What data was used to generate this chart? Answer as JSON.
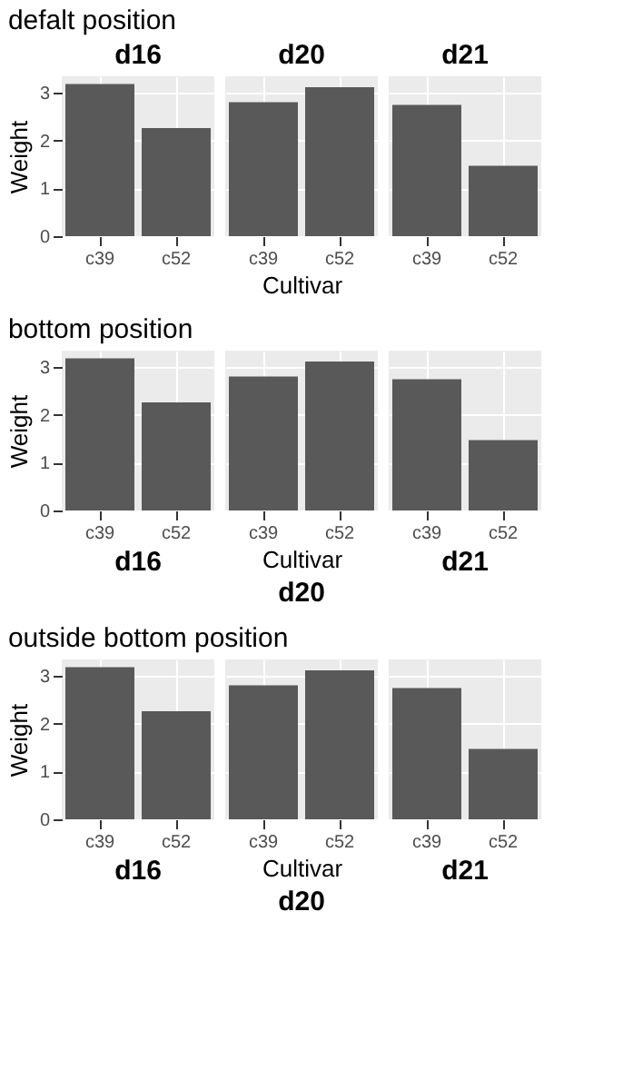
{
  "chart_data": [
    {
      "type": "bar",
      "title": "d16",
      "annotations": [
        "defalt position"
      ],
      "ylabel": "Weight",
      "categories": [
        "c39",
        "c52"
      ],
      "values": [
        3.18,
        2.26
      ],
      "color": "#595959",
      "ylim": [
        0,
        3.34
      ],
      "yticks": [
        0,
        1,
        2,
        3
      ],
      "grid": true
    },
    {
      "type": "bar",
      "title": "d20",
      "xlabel": "Cultivar",
      "categories": [
        "c39",
        "c52"
      ],
      "values": [
        2.8,
        3.11
      ],
      "color": "#595959",
      "ylim": [
        0,
        3.34
      ],
      "yticks": [
        0,
        1,
        2,
        3
      ],
      "grid": true,
      "tick_labels": "x"
    },
    {
      "type": "bar",
      "title": "d21",
      "categories": [
        "c39",
        "c52"
      ],
      "values": [
        2.74,
        1.47
      ],
      "color": "#595959",
      "ylim": [
        0,
        3.34
      ],
      "yticks": [
        0,
        1,
        2,
        3
      ],
      "grid": true,
      "tick_labels": "x"
    },
    {
      "type": "bar",
      "title": "d16",
      "annotations": [
        "bottom position"
      ],
      "ylabel": "Weight",
      "categories": [
        "c39",
        "c52"
      ],
      "values": [
        3.18,
        2.26
      ],
      "color": "#595959",
      "ylim": [
        0,
        3.34
      ],
      "yticks": [
        0,
        1,
        2,
        3
      ],
      "grid": true
    },
    {
      "type": "bar",
      "title": "d20",
      "xlabel": "Cultivar",
      "categories": [
        "c39",
        "c52"
      ],
      "values": [
        2.8,
        3.11
      ],
      "color": "#595959",
      "ylim": [
        0,
        3.34
      ],
      "yticks": [
        0,
        1,
        2,
        3
      ],
      "grid": true,
      "tick_labels": "x"
    },
    {
      "type": "bar",
      "title": "d21",
      "categories": [
        "c39",
        "c52"
      ],
      "values": [
        2.74,
        1.47
      ],
      "color": "#595959",
      "ylim": [
        0,
        3.34
      ],
      "yticks": [
        0,
        1,
        2,
        3
      ],
      "grid": true,
      "tick_labels": "x"
    },
    {
      "type": "bar",
      "title": "d16",
      "annotations": [
        "outside bottom position"
      ],
      "ylabel": "Weight",
      "categories": [
        "c39",
        "c52"
      ],
      "values": [
        3.18,
        2.26
      ],
      "color": "#595959",
      "ylim": [
        0,
        3.34
      ],
      "yticks": [
        0,
        1,
        2,
        3
      ],
      "grid": true
    },
    {
      "type": "bar",
      "title": "d20",
      "xlabel": "Cultivar",
      "categories": [
        "c39",
        "c52"
      ],
      "values": [
        2.8,
        3.11
      ],
      "color": "#595959",
      "ylim": [
        0,
        3.34
      ],
      "yticks": [
        0,
        1,
        2,
        3
      ],
      "grid": true,
      "tick_labels": "x"
    },
    {
      "type": "bar",
      "title": "d21",
      "categories": [
        "c39",
        "c52"
      ],
      "values": [
        2.74,
        1.47
      ],
      "color": "#595959",
      "ylim": [
        0,
        3.34
      ],
      "yticks": [
        0,
        1,
        2,
        3
      ],
      "grid": true,
      "tick_labels": "x"
    }
  ]
}
